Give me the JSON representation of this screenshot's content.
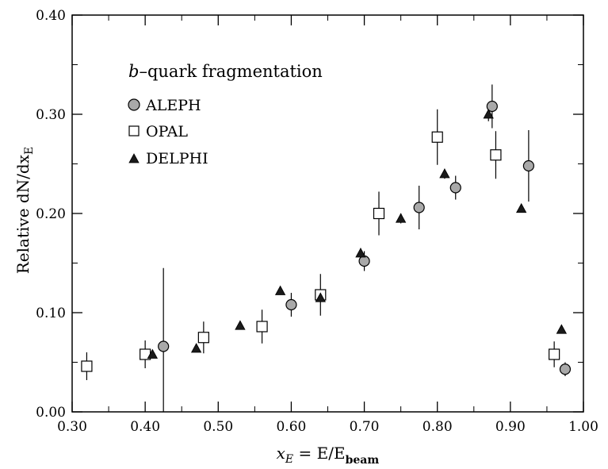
{
  "chart_data": {
    "type": "scatter",
    "title": "b–quark fragmentation",
    "title_italic_part": "b",
    "title_rest": "–quark fragmentation",
    "xlabel": "x_E = E/E_beam",
    "xlabel_parts": {
      "var": "x",
      "var_sub": "E",
      "eq": " = E/E",
      "sub": "beam"
    },
    "ylabel": "Relative dN/dx_E",
    "ylabel_parts": {
      "main": "Relative dN/dx",
      "sub": "E"
    },
    "xlim": [
      0.3,
      1.0
    ],
    "ylim": [
      0.0,
      0.4
    ],
    "x_ticks": [
      "0.30",
      "0.40",
      "0.50",
      "0.60",
      "0.70",
      "0.80",
      "0.90",
      "1.00"
    ],
    "y_ticks": [
      "0.00",
      "0.10",
      "0.20",
      "0.30",
      "0.40"
    ],
    "x_tick_values": [
      0.3,
      0.4,
      0.5,
      0.6,
      0.7,
      0.8,
      0.9,
      1.0
    ],
    "y_tick_values": [
      0.0,
      0.1,
      0.2,
      0.3,
      0.4
    ],
    "grid": false,
    "legend_position": "top-left",
    "series": [
      {
        "name": "ALEPH",
        "marker": "circle",
        "color": "#a9a9a9",
        "points": [
          {
            "x": 0.425,
            "y": 0.066,
            "err": 0.079
          },
          {
            "x": 0.6,
            "y": 0.108,
            "err": 0.012
          },
          {
            "x": 0.7,
            "y": 0.152,
            "err": 0.01
          },
          {
            "x": 0.775,
            "y": 0.206,
            "err": 0.022
          },
          {
            "x": 0.825,
            "y": 0.226,
            "err": 0.012
          },
          {
            "x": 0.875,
            "y": 0.308,
            "err": 0.022
          },
          {
            "x": 0.925,
            "y": 0.248,
            "err": 0.036
          },
          {
            "x": 0.975,
            "y": 0.043,
            "err": 0.007
          }
        ]
      },
      {
        "name": "OPAL",
        "marker": "square",
        "color": "#ffffff",
        "points": [
          {
            "x": 0.32,
            "y": 0.046,
            "err": 0.014
          },
          {
            "x": 0.4,
            "y": 0.058,
            "err": 0.014
          },
          {
            "x": 0.48,
            "y": 0.075,
            "err": 0.016
          },
          {
            "x": 0.56,
            "y": 0.086,
            "err": 0.017
          },
          {
            "x": 0.64,
            "y": 0.118,
            "err": 0.021
          },
          {
            "x": 0.72,
            "y": 0.2,
            "err": 0.022
          },
          {
            "x": 0.8,
            "y": 0.277,
            "err": 0.028
          },
          {
            "x": 0.88,
            "y": 0.259,
            "err": 0.024
          },
          {
            "x": 0.96,
            "y": 0.058,
            "err": 0.013
          }
        ]
      },
      {
        "name": "DELPHI",
        "marker": "triangle",
        "color": "#1a1a1a",
        "points": [
          {
            "x": 0.41,
            "y": 0.058,
            "err": 0.003
          },
          {
            "x": 0.47,
            "y": 0.064,
            "err": 0.003
          },
          {
            "x": 0.53,
            "y": 0.087,
            "err": 0.003
          },
          {
            "x": 0.585,
            "y": 0.122,
            "err": 0.004
          },
          {
            "x": 0.64,
            "y": 0.115,
            "err": 0.004
          },
          {
            "x": 0.695,
            "y": 0.16,
            "err": 0.005
          },
          {
            "x": 0.75,
            "y": 0.195,
            "err": 0.005
          },
          {
            "x": 0.81,
            "y": 0.24,
            "err": 0.005
          },
          {
            "x": 0.87,
            "y": 0.3,
            "err": 0.007
          },
          {
            "x": 0.915,
            "y": 0.205,
            "err": 0.003
          },
          {
            "x": 0.97,
            "y": 0.083,
            "err": 0.003
          }
        ]
      }
    ]
  }
}
